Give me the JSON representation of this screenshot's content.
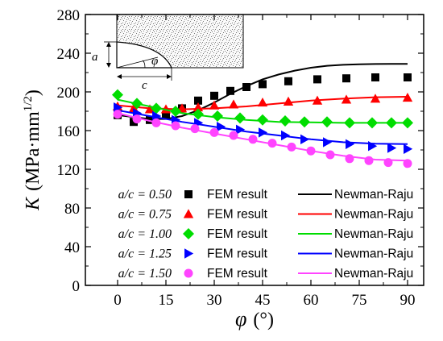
{
  "chart_data": {
    "type": "scatter",
    "xlabel": "φ",
    "xlabel_unit": "(°)",
    "ylabel": "K",
    "ylabel_unit": "(MPa·mm",
    "ylabel_unit_exp": "1/2",
    "ylabel_unit_close": ")",
    "xlim": [
      -10,
      95
    ],
    "ylim": [
      0,
      280
    ],
    "xticks": [
      0,
      15,
      30,
      45,
      60,
      75,
      90
    ],
    "yticks": [
      0,
      40,
      80,
      120,
      160,
      200,
      240,
      280
    ],
    "grid": false,
    "legend_position": "bottom-left",
    "inset": {
      "label_a": "a",
      "label_c": "c",
      "label_phi": "φ"
    },
    "series": [
      {
        "ratio": "a/c = 0.50",
        "name": "FEM result",
        "line_name": "Newman-Raju",
        "marker": "square",
        "color": "#000000",
        "x": [
          0,
          5,
          10,
          15,
          20,
          25,
          30,
          35,
          40,
          45,
          53,
          62,
          71,
          80,
          90
        ],
        "y": [
          176,
          169,
          171,
          176,
          183,
          191,
          196,
          201,
          205,
          208,
          211,
          213,
          214,
          215,
          215
        ],
        "line_x": [
          0,
          5,
          10,
          15,
          20,
          25,
          30,
          35,
          40,
          45,
          50,
          55,
          60,
          65,
          70,
          75,
          80,
          85,
          90
        ],
        "line_y": [
          176,
          174,
          172,
          172,
          175,
          181,
          189,
          198,
          206,
          213,
          218,
          222,
          225,
          227,
          228,
          228.5,
          228.8,
          229,
          229
        ]
      },
      {
        "ratio": "a/c = 0.75",
        "name": "FEM result",
        "line_name": "Newman-Raju",
        "marker": "triangle-up",
        "color": "#ff0000",
        "x": [
          0,
          5,
          10,
          15,
          20,
          25,
          30,
          36,
          45,
          53,
          62,
          71,
          80,
          90
        ],
        "y": [
          185,
          183,
          182,
          182,
          183,
          184,
          186,
          187,
          189,
          190,
          191,
          192,
          193,
          194
        ],
        "line_x": [
          0,
          10,
          20,
          30,
          40,
          50,
          60,
          70,
          80,
          90
        ],
        "line_y": [
          186,
          183,
          182,
          183,
          185,
          188,
          191,
          193,
          194.5,
          195
        ]
      },
      {
        "ratio": "a/c = 1.00",
        "name": "FEM result",
        "line_name": "Newman-Raju",
        "marker": "diamond",
        "color": "#00dd00",
        "x": [
          0,
          6,
          12,
          18,
          25,
          31,
          38,
          45,
          52,
          58,
          65,
          72,
          79,
          85,
          90
        ],
        "y": [
          197,
          188,
          183,
          180,
          177,
          175,
          173,
          171,
          170,
          169,
          169,
          168,
          168,
          168,
          168
        ],
        "line_x": [
          0,
          10,
          20,
          30,
          40,
          50,
          60,
          70,
          80,
          90
        ],
        "line_y": [
          192,
          185,
          178,
          174,
          171,
          169,
          168.5,
          168,
          168,
          168
        ]
      },
      {
        "ratio": "a/c = 1.25",
        "name": "FEM result",
        "line_name": "Newman-Raju",
        "marker": "triangle-right",
        "color": "#0000ff",
        "x": [
          0,
          6,
          12,
          18,
          25,
          32,
          38,
          45,
          52,
          58,
          65,
          72,
          79,
          85,
          90
        ],
        "y": [
          184,
          178,
          175,
          171,
          168,
          164,
          161,
          158,
          155,
          151,
          148,
          146,
          144,
          142,
          141
        ],
        "line_x": [
          0,
          10,
          20,
          30,
          40,
          50,
          60,
          70,
          80,
          90
        ],
        "line_y": [
          181,
          175,
          169,
          164,
          159,
          155,
          151,
          148,
          146.5,
          146
        ]
      },
      {
        "ratio": "a/c = 1.50",
        "name": "FEM result",
        "line_name": "Newman-Raju",
        "marker": "circle",
        "color": "#ff44ff",
        "x": [
          0,
          6,
          12,
          18,
          24,
          30,
          36,
          42,
          48,
          54,
          60,
          66,
          72,
          78,
          84,
          90
        ],
        "y": [
          177,
          172,
          168,
          165,
          162,
          158,
          155,
          151,
          147,
          143,
          139,
          135,
          131,
          129,
          127,
          126
        ],
        "line_x": [
          0,
          10,
          20,
          30,
          40,
          50,
          60,
          70,
          80,
          90
        ],
        "line_y": [
          178,
          170,
          163,
          157,
          151,
          145,
          139,
          134,
          130,
          129
        ]
      }
    ]
  }
}
